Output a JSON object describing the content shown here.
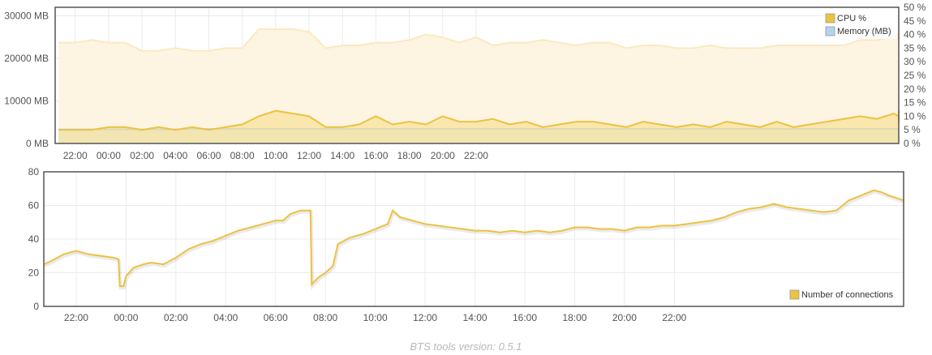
{
  "chart_data": [
    {
      "type": "line",
      "axes": {
        "y_left": {
          "label": "",
          "unit": "MB",
          "ticks": [
            "0 MB",
            "10000 MB",
            "20000 MB",
            "30000 MB"
          ],
          "ylim": [
            0,
            32000
          ]
        },
        "y_right": {
          "label": "",
          "unit": "%",
          "ticks": [
            "0 %",
            "5 %",
            "10 %",
            "15 %",
            "20 %",
            "25 %",
            "30 %",
            "35 %",
            "40 %",
            "45 %",
            "50 %"
          ],
          "ylim": [
            0,
            50
          ]
        },
        "x": {
          "ticks": [
            "22:00",
            "00:00",
            "02:00",
            "04:00",
            "06:00",
            "08:00",
            "10:00",
            "12:00",
            "14:00",
            "16:00",
            "18:00",
            "20:00",
            "22:00"
          ]
        }
      },
      "legend": {
        "placement": "top-right",
        "entries": [
          "CPU %",
          "Memory (MB)"
        ]
      },
      "grid": true,
      "x_hours": [
        -3,
        -2,
        -1,
        0,
        1,
        2,
        3,
        4,
        5,
        6,
        7,
        8,
        9,
        10,
        11,
        12,
        13,
        14,
        15,
        16,
        17,
        18,
        19,
        20,
        21,
        22,
        23,
        24,
        25,
        26,
        27,
        28,
        29,
        30,
        31,
        32,
        33,
        34,
        35,
        36,
        37,
        38,
        39,
        40,
        41,
        42,
        43,
        44,
        45,
        46,
        47,
        48,
        49,
        50
      ],
      "series": [
        {
          "name": "Memory (MB)",
          "color": "#b3d3ee",
          "axis": "left",
          "values": [
            3300,
            3300,
            3300,
            3300,
            3300,
            3300,
            3300,
            3300,
            3400,
            3400,
            3400,
            3400,
            3400,
            3400,
            3400,
            3400,
            3400,
            3400,
            3400,
            3400,
            3400,
            3400,
            3400,
            3400,
            3400,
            3400,
            3400,
            3400,
            3400,
            3400,
            3400,
            3400,
            3400,
            3400,
            3400,
            3400,
            3400,
            3400,
            3400,
            3400,
            3400,
            3400,
            3400,
            3400,
            3400,
            3400,
            3400,
            3400,
            3400,
            3400,
            3400,
            3400,
            3400,
            3400
          ]
        },
        {
          "name": "CPU %",
          "color": "#edc240",
          "axis": "right",
          "values": [
            5,
            5,
            5,
            6,
            6,
            5,
            6,
            5,
            6,
            5,
            6,
            7,
            10,
            12,
            11,
            10,
            6,
            6,
            7,
            10,
            7,
            8,
            7,
            10,
            8,
            8,
            9,
            7,
            8,
            6,
            7,
            8,
            8,
            7,
            6,
            8,
            7,
            6,
            7,
            6,
            8,
            7,
            6,
            8,
            6,
            7,
            8,
            9,
            10,
            9,
            11,
            10,
            12,
            8
          ]
        },
        {
          "name": "",
          "color": "#fbe9c0",
          "axis": "right",
          "values": [
            37,
            37,
            38,
            37,
            37,
            34,
            34,
            35,
            34,
            34,
            35,
            35,
            42,
            42,
            42,
            41,
            35,
            36,
            36,
            37,
            37,
            38,
            40,
            39,
            37,
            39,
            36,
            37,
            37,
            38,
            37,
            36,
            37,
            37,
            35,
            36,
            36,
            35,
            35,
            36,
            35,
            35,
            35,
            36,
            36,
            36,
            36,
            36,
            38,
            38,
            39,
            40,
            39,
            38
          ]
        }
      ]
    },
    {
      "type": "line",
      "axes": {
        "y": {
          "label": "",
          "ticks": [
            "0",
            "20",
            "40",
            "60",
            "80"
          ],
          "ylim": [
            0,
            80
          ]
        },
        "x": {
          "ticks": [
            "22:00",
            "00:00",
            "02:00",
            "04:00",
            "06:00",
            "08:00",
            "10:00",
            "12:00",
            "14:00",
            "16:00",
            "18:00",
            "20:00",
            "22:00"
          ]
        }
      },
      "legend": {
        "placement": "bottom-right",
        "entries": [
          "Number of connections"
        ]
      },
      "grid": true,
      "series": [
        {
          "name": "Number of connections",
          "color": "#edc240",
          "points": [
            [
              -3.3,
              25
            ],
            [
              -3.0,
              27
            ],
            [
              -2.5,
              31
            ],
            [
              -2.0,
              33
            ],
            [
              -1.5,
              31
            ],
            [
              -1.0,
              30
            ],
            [
              -0.5,
              29
            ],
            [
              -0.3,
              28
            ],
            [
              -0.25,
              12
            ],
            [
              -0.1,
              12
            ],
            [
              0.0,
              18
            ],
            [
              0.3,
              23
            ],
            [
              0.7,
              25
            ],
            [
              1.0,
              26
            ],
            [
              1.5,
              25
            ],
            [
              2.0,
              29
            ],
            [
              2.5,
              34
            ],
            [
              3.0,
              37
            ],
            [
              3.5,
              39
            ],
            [
              4.0,
              42
            ],
            [
              4.5,
              45
            ],
            [
              5.0,
              47
            ],
            [
              5.5,
              49
            ],
            [
              6.0,
              51
            ],
            [
              6.3,
              51
            ],
            [
              6.6,
              55
            ],
            [
              7.0,
              57
            ],
            [
              7.4,
              57
            ],
            [
              7.45,
              13
            ],
            [
              7.7,
              17
            ],
            [
              8.0,
              20
            ],
            [
              8.3,
              24
            ],
            [
              8.5,
              37
            ],
            [
              9.0,
              41
            ],
            [
              9.5,
              43
            ],
            [
              10.0,
              46
            ],
            [
              10.5,
              49
            ],
            [
              10.7,
              57
            ],
            [
              11.0,
              53
            ],
            [
              11.5,
              51
            ],
            [
              12.0,
              49
            ],
            [
              12.5,
              48
            ],
            [
              13.0,
              47
            ],
            [
              13.5,
              46
            ],
            [
              14.0,
              45
            ],
            [
              14.5,
              45
            ],
            [
              15.0,
              44
            ],
            [
              15.5,
              45
            ],
            [
              16.0,
              44
            ],
            [
              16.5,
              45
            ],
            [
              17.0,
              44
            ],
            [
              17.5,
              45
            ],
            [
              18.0,
              47
            ],
            [
              18.5,
              47
            ],
            [
              19.0,
              46
            ],
            [
              19.5,
              46
            ],
            [
              20.0,
              45
            ],
            [
              20.5,
              47
            ],
            [
              21.0,
              47
            ],
            [
              21.5,
              48
            ],
            [
              22.0,
              48
            ],
            [
              22.5,
              49
            ],
            [
              23.0,
              50
            ],
            [
              23.5,
              51
            ],
            [
              24.0,
              53
            ],
            [
              24.5,
              56
            ],
            [
              25.0,
              58
            ],
            [
              25.5,
              59
            ],
            [
              26.0,
              61
            ],
            [
              26.5,
              59
            ],
            [
              27.0,
              58
            ],
            [
              27.5,
              57
            ],
            [
              28.0,
              56
            ],
            [
              28.5,
              57
            ],
            [
              29.0,
              63
            ],
            [
              29.5,
              66
            ],
            [
              30.0,
              69
            ],
            [
              30.3,
              68
            ],
            [
              30.6,
              66
            ],
            [
              31.0,
              64
            ],
            [
              31.2,
              63
            ]
          ]
        }
      ]
    }
  ],
  "footer": {
    "text": "BTS tools version: 0.5.1"
  }
}
